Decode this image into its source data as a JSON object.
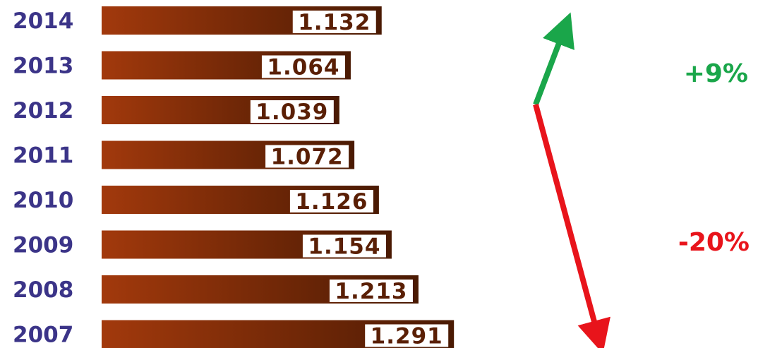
{
  "chart_data": {
    "type": "bar",
    "orientation": "horizontal",
    "categories": [
      "2014",
      "2013",
      "2012",
      "2011",
      "2010",
      "2009",
      "2008",
      "2007"
    ],
    "values": [
      1.132,
      1.064,
      1.039,
      1.072,
      1.126,
      1.154,
      1.213,
      1.291
    ],
    "value_labels": [
      "1.132",
      "1.064",
      "1.039",
      "1.072",
      "1.126",
      "1.154",
      "1.213",
      "1.291"
    ],
    "title": "",
    "xlabel": "",
    "ylabel": "",
    "grid": false,
    "annotations": [
      {
        "text": "+9%",
        "direction": "up",
        "color": "#1aa64a"
      },
      {
        "text": "-20%",
        "direction": "down",
        "color": "#e8141b"
      }
    ]
  },
  "colors": {
    "bar_start": "#a2390c",
    "bar_end": "#4a1a03",
    "year_label": "#3b3488",
    "value_text": "#5a1f05",
    "up_arrow": "#1aa64a",
    "down_arrow": "#e8141b"
  }
}
